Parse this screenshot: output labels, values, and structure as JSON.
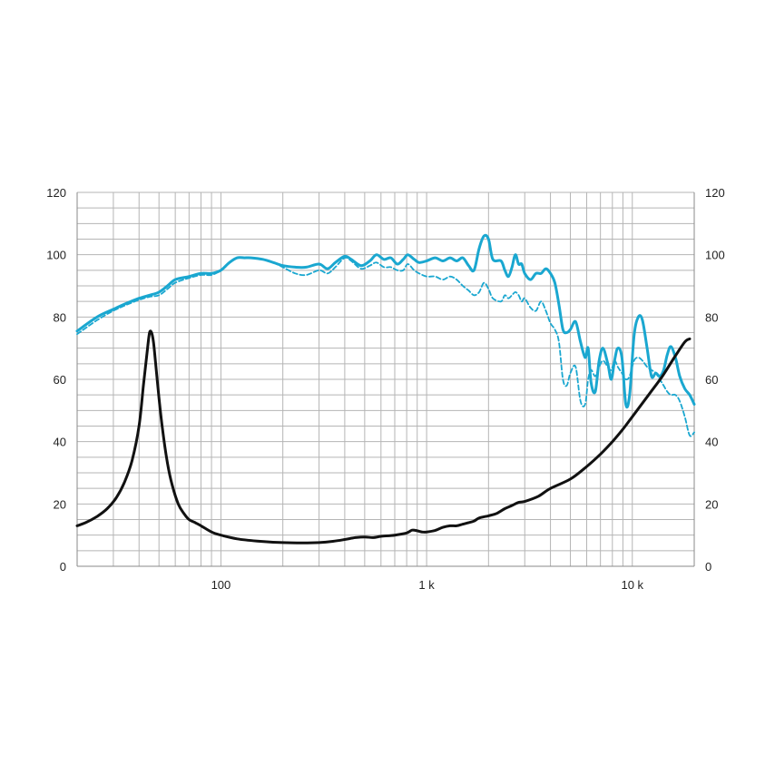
{
  "chart_data": {
    "type": "line",
    "x_scale": "log",
    "xlim": [
      20,
      20000
    ],
    "ylim": [
      0,
      120
    ],
    "grid": true,
    "y_ticks": [
      "0",
      "20",
      "40",
      "60",
      "80",
      "100",
      "120"
    ],
    "y_tick_values": [
      0,
      20,
      40,
      60,
      80,
      100,
      120
    ],
    "x_ticks": [
      {
        "value": 100,
        "label": "100"
      },
      {
        "value": 1000,
        "label": "1 k"
      },
      {
        "value": 10000,
        "label": "10 k"
      }
    ],
    "series": [
      {
        "color": "#1aa7d0",
        "style": "solid",
        "points": [
          [
            20,
            75.5
          ],
          [
            25,
            80
          ],
          [
            30,
            82.5
          ],
          [
            35,
            84.5
          ],
          [
            40,
            86
          ],
          [
            45,
            87
          ],
          [
            50,
            88
          ],
          [
            55,
            90
          ],
          [
            60,
            92
          ],
          [
            70,
            93
          ],
          [
            80,
            94
          ],
          [
            90,
            94
          ],
          [
            100,
            95
          ],
          [
            110,
            97.5
          ],
          [
            120,
            99
          ],
          [
            130,
            99
          ],
          [
            140,
            99
          ],
          [
            160,
            98.5
          ],
          [
            180,
            97.5
          ],
          [
            200,
            96.5
          ],
          [
            230,
            96
          ],
          [
            260,
            96
          ],
          [
            300,
            97
          ],
          [
            330,
            95.5
          ],
          [
            360,
            97.5
          ],
          [
            400,
            99.5
          ],
          [
            430,
            98.5
          ],
          [
            480,
            96.5
          ],
          [
            530,
            98
          ],
          [
            570,
            100
          ],
          [
            620,
            98.5
          ],
          [
            670,
            99
          ],
          [
            720,
            97
          ],
          [
            770,
            98.5
          ],
          [
            810,
            100
          ],
          [
            870,
            98.5
          ],
          [
            920,
            97.5
          ],
          [
            1000,
            98
          ],
          [
            1100,
            99
          ],
          [
            1200,
            98
          ],
          [
            1300,
            99
          ],
          [
            1400,
            98
          ],
          [
            1500,
            99
          ],
          [
            1600,
            96.5
          ],
          [
            1700,
            95
          ],
          [
            1800,
            102
          ],
          [
            1900,
            106
          ],
          [
            2000,
            105
          ],
          [
            2100,
            98.5
          ],
          [
            2300,
            98
          ],
          [
            2400,
            95
          ],
          [
            2500,
            93
          ],
          [
            2600,
            96
          ],
          [
            2700,
            100
          ],
          [
            2800,
            97
          ],
          [
            2900,
            97
          ],
          [
            3000,
            94
          ],
          [
            3200,
            92
          ],
          [
            3400,
            94
          ],
          [
            3600,
            94
          ],
          [
            3800,
            95.5
          ],
          [
            4000,
            94
          ],
          [
            4200,
            91
          ],
          [
            4400,
            84
          ],
          [
            4600,
            76
          ],
          [
            4800,
            75
          ],
          [
            5000,
            76
          ],
          [
            5300,
            78.5
          ],
          [
            5600,
            72
          ],
          [
            5900,
            67
          ],
          [
            6100,
            70
          ],
          [
            6300,
            59
          ],
          [
            6600,
            56
          ],
          [
            6900,
            66
          ],
          [
            7200,
            70
          ],
          [
            7600,
            65
          ],
          [
            7900,
            60
          ],
          [
            8200,
            66
          ],
          [
            8500,
            70
          ],
          [
            8900,
            67
          ],
          [
            9300,
            52
          ],
          [
            9700,
            55
          ],
          [
            10200,
            74
          ],
          [
            10700,
            80
          ],
          [
            11200,
            79
          ],
          [
            11800,
            70
          ],
          [
            12400,
            61
          ],
          [
            13000,
            62
          ],
          [
            13600,
            61
          ],
          [
            14200,
            63
          ],
          [
            14800,
            68
          ],
          [
            15400,
            70.5
          ],
          [
            16200,
            67
          ],
          [
            17000,
            61
          ],
          [
            18000,
            57
          ],
          [
            19000,
            55
          ],
          [
            20000,
            52
          ]
        ]
      },
      {
        "color": "#1aa7d0",
        "style": "dashed",
        "points": [
          [
            20,
            74.5
          ],
          [
            25,
            79
          ],
          [
            30,
            82
          ],
          [
            35,
            84
          ],
          [
            40,
            85.5
          ],
          [
            45,
            86.5
          ],
          [
            50,
            87
          ],
          [
            55,
            89
          ],
          [
            60,
            91
          ],
          [
            70,
            92.5
          ],
          [
            80,
            93.5
          ],
          [
            90,
            93.5
          ],
          [
            100,
            95
          ],
          [
            110,
            97.5
          ],
          [
            120,
            99
          ],
          [
            130,
            99
          ],
          [
            140,
            99
          ],
          [
            160,
            98.5
          ],
          [
            180,
            97.5
          ],
          [
            200,
            96
          ],
          [
            230,
            94
          ],
          [
            260,
            93.5
          ],
          [
            300,
            95
          ],
          [
            330,
            94
          ],
          [
            360,
            96
          ],
          [
            400,
            99
          ],
          [
            430,
            98
          ],
          [
            480,
            95.5
          ],
          [
            530,
            96.5
          ],
          [
            570,
            97.5
          ],
          [
            620,
            96
          ],
          [
            670,
            96
          ],
          [
            720,
            95
          ],
          [
            770,
            95
          ],
          [
            810,
            97
          ],
          [
            870,
            95
          ],
          [
            920,
            94
          ],
          [
            1000,
            93
          ],
          [
            1100,
            93
          ],
          [
            1200,
            92
          ],
          [
            1300,
            93
          ],
          [
            1400,
            92
          ],
          [
            1500,
            90
          ],
          [
            1600,
            88.5
          ],
          [
            1700,
            87
          ],
          [
            1800,
            88
          ],
          [
            1900,
            91
          ],
          [
            2000,
            89
          ],
          [
            2100,
            86
          ],
          [
            2300,
            85
          ],
          [
            2400,
            87
          ],
          [
            2500,
            86
          ],
          [
            2600,
            87
          ],
          [
            2700,
            88
          ],
          [
            2800,
            87
          ],
          [
            2900,
            85
          ],
          [
            3000,
            86
          ],
          [
            3200,
            83
          ],
          [
            3400,
            82
          ],
          [
            3600,
            85
          ],
          [
            3800,
            82
          ],
          [
            4000,
            78
          ],
          [
            4200,
            76
          ],
          [
            4400,
            72
          ],
          [
            4600,
            60
          ],
          [
            4800,
            58
          ],
          [
            5000,
            62
          ],
          [
            5300,
            64
          ],
          [
            5600,
            53
          ],
          [
            5900,
            52
          ],
          [
            6100,
            60
          ],
          [
            6300,
            63
          ],
          [
            6600,
            61
          ],
          [
            6900,
            64
          ],
          [
            7200,
            66
          ],
          [
            7600,
            64
          ],
          [
            7900,
            63
          ],
          [
            8200,
            66
          ],
          [
            8500,
            64
          ],
          [
            8900,
            62
          ],
          [
            9300,
            60
          ],
          [
            9700,
            61
          ],
          [
            10200,
            66
          ],
          [
            10700,
            67
          ],
          [
            11200,
            66
          ],
          [
            11800,
            64
          ],
          [
            12400,
            63
          ],
          [
            13000,
            62
          ],
          [
            13600,
            60
          ],
          [
            14200,
            58
          ],
          [
            14800,
            56
          ],
          [
            15400,
            55
          ],
          [
            16200,
            55
          ],
          [
            17000,
            53
          ],
          [
            18000,
            48
          ],
          [
            19000,
            42
          ],
          [
            20000,
            43
          ]
        ]
      },
      {
        "color": "#111111",
        "style": "solid",
        "points": [
          [
            20,
            13
          ],
          [
            22,
            14
          ],
          [
            25,
            16
          ],
          [
            28,
            18.5
          ],
          [
            31,
            22
          ],
          [
            34,
            27
          ],
          [
            37,
            34
          ],
          [
            40,
            45
          ],
          [
            42,
            58
          ],
          [
            44,
            70
          ],
          [
            45,
            75
          ],
          [
            46,
            75
          ],
          [
            47,
            72
          ],
          [
            48,
            66
          ],
          [
            50,
            54
          ],
          [
            52,
            44
          ],
          [
            55,
            33
          ],
          [
            58,
            26
          ],
          [
            62,
            20
          ],
          [
            66,
            17
          ],
          [
            70,
            15
          ],
          [
            75,
            14
          ],
          [
            80,
            13
          ],
          [
            90,
            11
          ],
          [
            100,
            10
          ],
          [
            120,
            8.8
          ],
          [
            150,
            8.1
          ],
          [
            200,
            7.6
          ],
          [
            250,
            7.5
          ],
          [
            300,
            7.6
          ],
          [
            350,
            8
          ],
          [
            400,
            8.6
          ],
          [
            450,
            9.2
          ],
          [
            500,
            9.4
          ],
          [
            550,
            9.2
          ],
          [
            600,
            9.6
          ],
          [
            700,
            10
          ],
          [
            800,
            10.7
          ],
          [
            850,
            11.6
          ],
          [
            900,
            11.4
          ],
          [
            950,
            11
          ],
          [
            1000,
            11
          ],
          [
            1100,
            11.5
          ],
          [
            1200,
            12.5
          ],
          [
            1300,
            13
          ],
          [
            1400,
            13
          ],
          [
            1500,
            13.5
          ],
          [
            1600,
            14
          ],
          [
            1700,
            14.5
          ],
          [
            1800,
            15.5
          ],
          [
            2000,
            16.2
          ],
          [
            2200,
            17
          ],
          [
            2400,
            18.5
          ],
          [
            2600,
            19.5
          ],
          [
            2800,
            20.5
          ],
          [
            3000,
            20.8
          ],
          [
            3500,
            22.5
          ],
          [
            4000,
            25
          ],
          [
            5000,
            28
          ],
          [
            6000,
            32
          ],
          [
            7000,
            36
          ],
          [
            8000,
            40
          ],
          [
            9000,
            44
          ],
          [
            10000,
            48
          ],
          [
            12000,
            55
          ],
          [
            14000,
            61
          ],
          [
            16000,
            67
          ],
          [
            18000,
            72
          ],
          [
            19000,
            73
          ]
        ]
      }
    ]
  }
}
